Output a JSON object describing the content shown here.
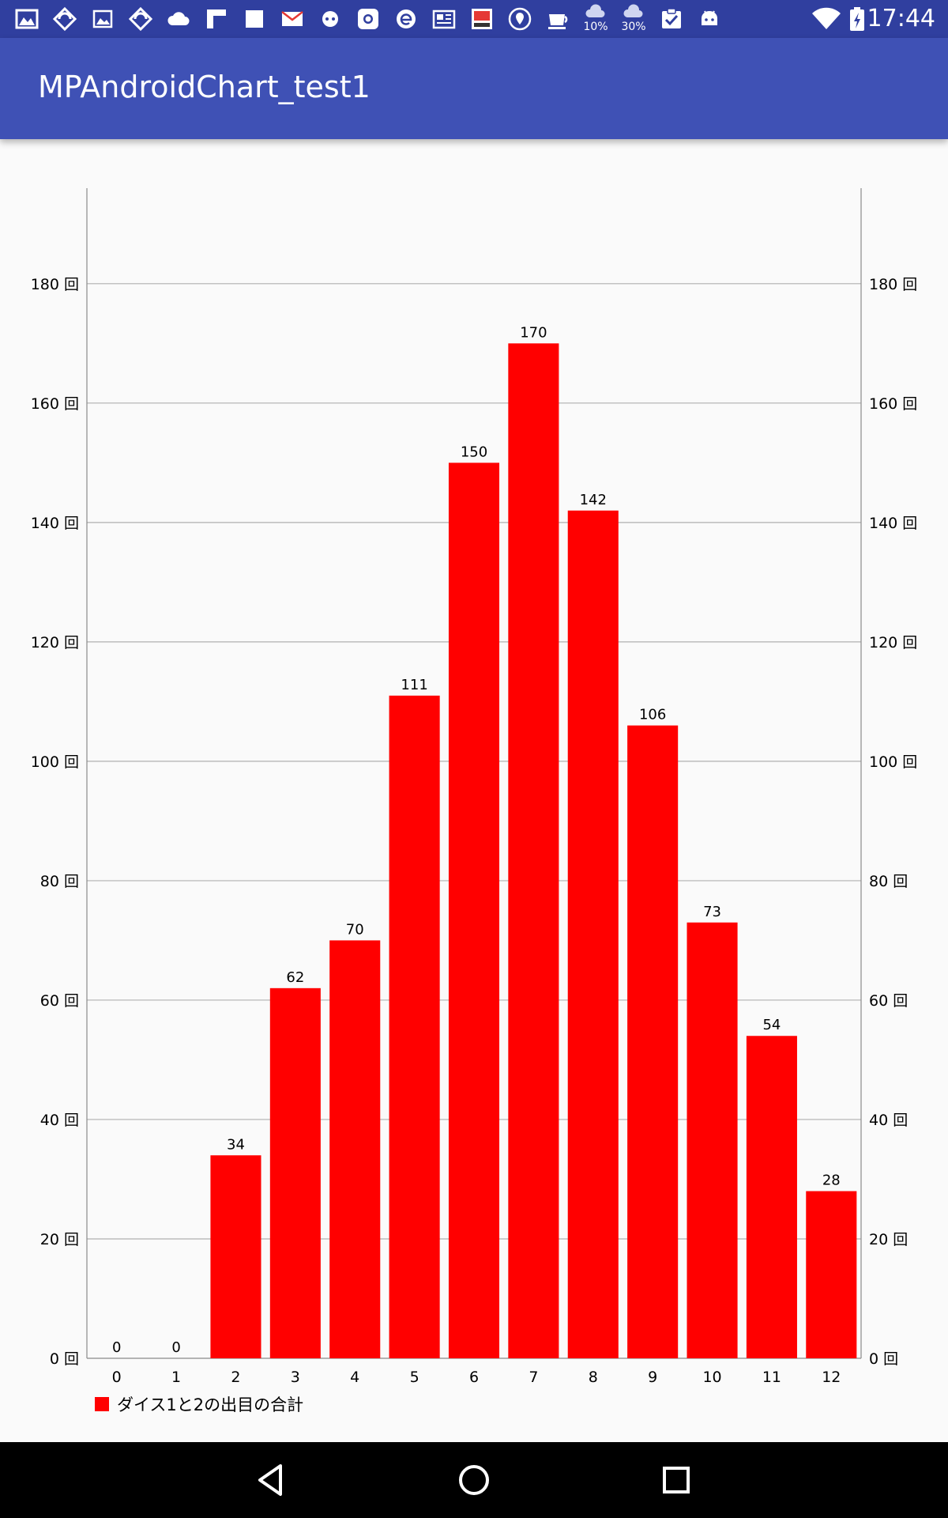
{
  "status_bar": {
    "time": "17:44",
    "weather_1_pct": "10%",
    "weather_2_pct": "30%",
    "icons": [
      "gallery-icon",
      "sync-icon",
      "image-icon",
      "sync-icon",
      "cloud-icon",
      "flipboard-icon",
      "square-icon",
      "mail-icon",
      "chat-icon",
      "camera-icon",
      "browser-icon",
      "news-icon",
      "app-icon",
      "location-icon",
      "cup-icon",
      "cloud-rain-icon",
      "cloud-rain-icon",
      "checklist-icon",
      "android-icon",
      "wifi-icon",
      "battery-icon"
    ]
  },
  "app_bar": {
    "title": "MPAndroidChart_test1"
  },
  "chart_data": {
    "type": "bar",
    "categories": [
      "0",
      "1",
      "2",
      "3",
      "4",
      "5",
      "6",
      "7",
      "8",
      "9",
      "10",
      "11",
      "12"
    ],
    "series": [
      {
        "name": "ダイス1と2の出目の合計",
        "values": [
          0,
          0,
          34,
          62,
          70,
          111,
          150,
          170,
          142,
          106,
          73,
          54,
          28
        ],
        "color": "#ff0000"
      }
    ],
    "y_tick_values": [
      0,
      20,
      40,
      60,
      80,
      100,
      120,
      140,
      160,
      180
    ],
    "y_tick_labels": [
      "0 回",
      "20 回",
      "40 回",
      "60 回",
      "80 回",
      "100 回",
      "120 回",
      "140 回",
      "160 回",
      "180 回"
    ],
    "ylim": [
      0,
      196
    ],
    "grid": true,
    "legend_position": "bottom-left",
    "axes": [
      "left",
      "right"
    ],
    "grid_color": "#b0b0b0",
    "axis_color": "#8a8a8a"
  },
  "legend": {
    "label": "ダイス1と2の出目の合計",
    "color": "#ff0000"
  },
  "nav_bar": {
    "icons": [
      "back-icon",
      "home-icon",
      "recents-icon"
    ]
  }
}
